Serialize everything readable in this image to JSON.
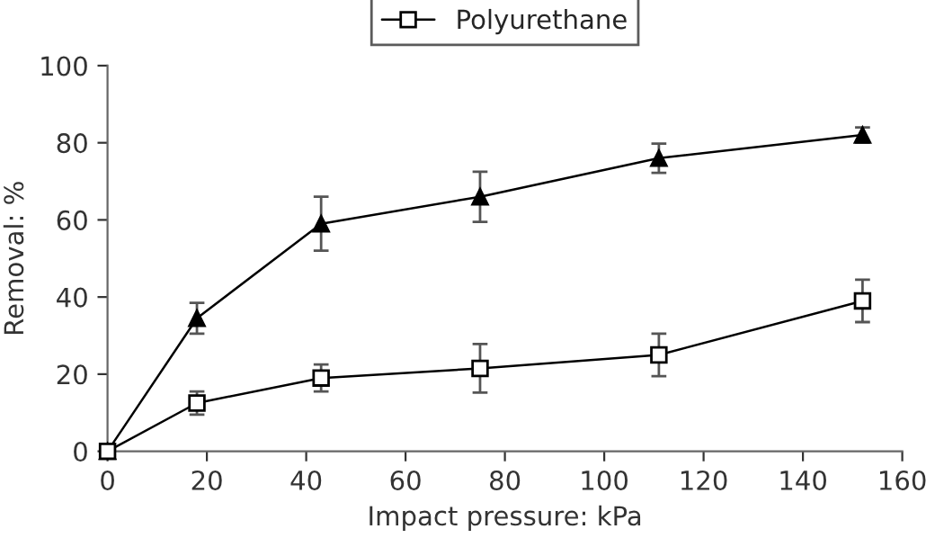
{
  "chart_data": {
    "type": "line",
    "xlabel": "Impact pressure: kPa",
    "ylabel": "Removal: %",
    "x": [
      0,
      18,
      43,
      75,
      111,
      152
    ],
    "series": [
      {
        "color": "#000000",
        "marker": "triangle",
        "values": [
          0,
          34.5,
          59,
          66,
          76,
          82
        ],
        "errors": [
          null,
          4,
          7,
          6.5,
          3.8,
          2
        ]
      },
      {
        "name": "Polyurethane",
        "color": "#000000",
        "marker": "square",
        "values": [
          0,
          12.5,
          19,
          21.5,
          25,
          39
        ],
        "errors": [
          null,
          3,
          3.5,
          6.3,
          5.5,
          5.5
        ]
      }
    ],
    "xlim": [
      0,
      160
    ],
    "xticks": [
      0,
      20,
      40,
      60,
      80,
      100,
      120,
      140,
      160
    ],
    "ylim": [
      0,
      100
    ],
    "yticks": [
      0,
      20,
      40,
      60,
      80,
      100
    ],
    "grid": false,
    "legend": "top",
    "line_style": "solid"
  }
}
